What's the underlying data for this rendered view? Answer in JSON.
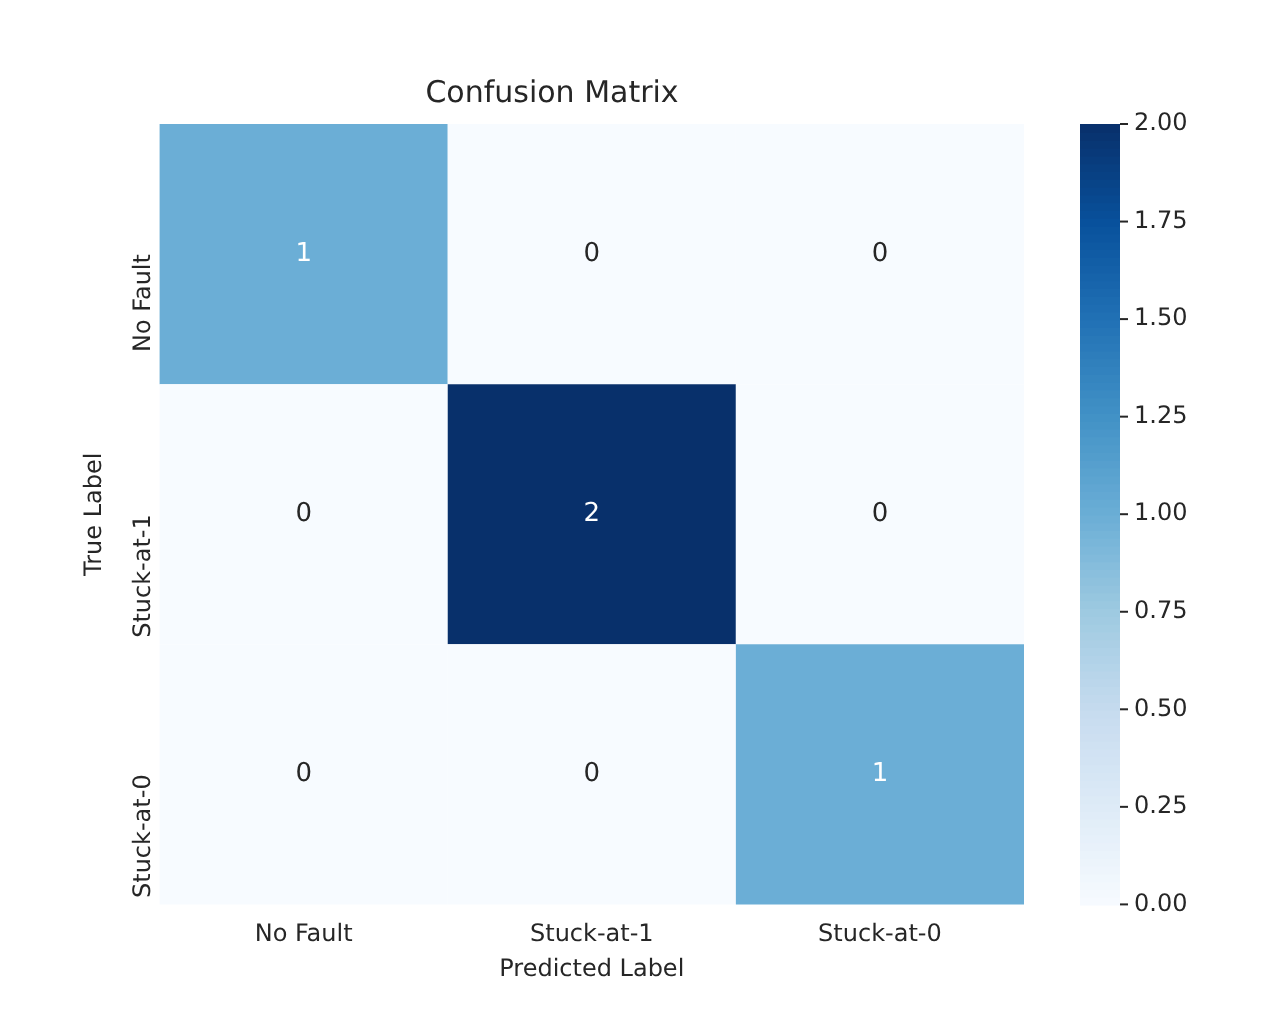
{
  "chart_data": {
    "type": "heatmap",
    "title": "Confusion Matrix",
    "xlabel": "Predicted Label",
    "ylabel": "True Label",
    "categories": [
      "No Fault",
      "Stuck-at-1",
      "Stuck-at-0"
    ],
    "y_categories": [
      "No Fault",
      "Stuck-at-1",
      "Stuck-at-0"
    ],
    "cells": [
      [
        1,
        0,
        0
      ],
      [
        0,
        2,
        0
      ],
      [
        0,
        0,
        1
      ]
    ],
    "clim": [
      0,
      2
    ],
    "cticks": [
      {
        "value": 0,
        "label": "0.00"
      },
      {
        "value": 0.25,
        "label": "0.25"
      },
      {
        "value": 0.5,
        "label": "0.50"
      },
      {
        "value": 0.75,
        "label": "0.75"
      },
      {
        "value": 1,
        "label": "1.00"
      },
      {
        "value": 1.25,
        "label": "1.25"
      },
      {
        "value": 1.5,
        "label": "1.50"
      },
      {
        "value": 1.75,
        "label": "1.75"
      },
      {
        "value": 2,
        "label": "2.00"
      }
    ],
    "data_labels": true
  }
}
